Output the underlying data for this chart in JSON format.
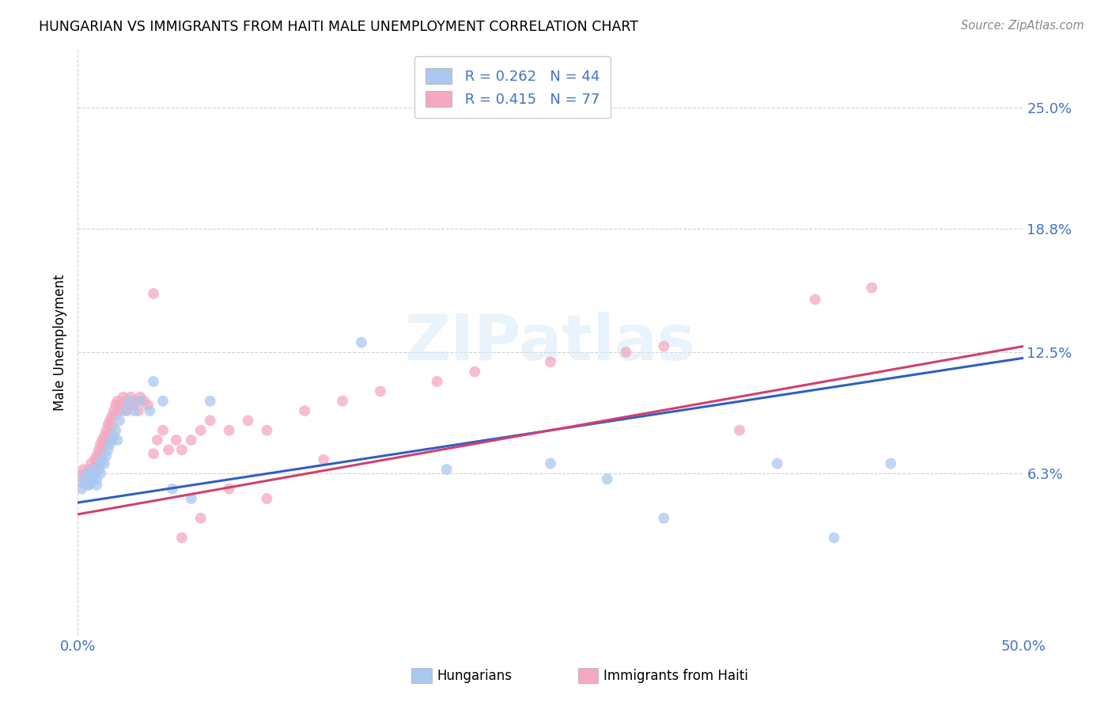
{
  "title": "HUNGARIAN VS IMMIGRANTS FROM HAITI MALE UNEMPLOYMENT CORRELATION CHART",
  "source": "Source: ZipAtlas.com",
  "ylabel": "Male Unemployment",
  "xlim": [
    0.0,
    0.5
  ],
  "ylim": [
    -0.02,
    0.28
  ],
  "ytick_labels": [
    "6.3%",
    "12.5%",
    "18.8%",
    "25.0%"
  ],
  "ytick_values": [
    0.063,
    0.125,
    0.188,
    0.25
  ],
  "xtick_labels": [
    "0.0%",
    "50.0%"
  ],
  "xtick_values": [
    0.0,
    0.5
  ],
  "legend_R1": "R = 0.262",
  "legend_N1": "N = 44",
  "legend_R2": "R = 0.415",
  "legend_N2": "N = 77",
  "color_hungarian": "#aac8f0",
  "color_haiti": "#f5a8c0",
  "color_line_hungarian": "#3060c0",
  "color_line_haiti": "#d04070",
  "color_text_blue": "#4472c4",
  "watermark": "ZIPatlas",
  "hung_line_x0": 0.0,
  "hung_line_y0": 0.048,
  "hung_line_x1": 0.5,
  "hung_line_y1": 0.122,
  "haiti_line_x0": 0.0,
  "haiti_line_y0": 0.042,
  "haiti_line_x1": 0.5,
  "haiti_line_y1": 0.128,
  "hungarian_x": [
    0.002,
    0.003,
    0.004,
    0.005,
    0.005,
    0.006,
    0.007,
    0.007,
    0.008,
    0.008,
    0.009,
    0.01,
    0.01,
    0.011,
    0.012,
    0.012,
    0.013,
    0.014,
    0.015,
    0.016,
    0.017,
    0.018,
    0.019,
    0.02,
    0.021,
    0.022,
    0.025,
    0.027,
    0.03,
    0.033,
    0.038,
    0.04,
    0.045,
    0.05,
    0.06,
    0.07,
    0.15,
    0.195,
    0.25,
    0.28,
    0.31,
    0.37,
    0.4,
    0.43
  ],
  "hungarian_y": [
    0.055,
    0.06,
    0.058,
    0.063,
    0.06,
    0.057,
    0.062,
    0.058,
    0.065,
    0.06,
    0.063,
    0.06,
    0.057,
    0.065,
    0.068,
    0.063,
    0.07,
    0.068,
    0.072,
    0.075,
    0.078,
    0.08,
    0.082,
    0.085,
    0.08,
    0.09,
    0.095,
    0.1,
    0.095,
    0.1,
    0.095,
    0.11,
    0.1,
    0.055,
    0.05,
    0.1,
    0.13,
    0.065,
    0.068,
    0.06,
    0.04,
    0.068,
    0.03,
    0.068
  ],
  "haiti_x": [
    0.002,
    0.003,
    0.003,
    0.004,
    0.005,
    0.005,
    0.006,
    0.006,
    0.007,
    0.007,
    0.008,
    0.008,
    0.009,
    0.009,
    0.01,
    0.01,
    0.011,
    0.011,
    0.012,
    0.012,
    0.013,
    0.013,
    0.014,
    0.014,
    0.015,
    0.015,
    0.016,
    0.016,
    0.017,
    0.018,
    0.018,
    0.019,
    0.02,
    0.02,
    0.021,
    0.022,
    0.023,
    0.024,
    0.025,
    0.026,
    0.027,
    0.028,
    0.029,
    0.03,
    0.032,
    0.033,
    0.035,
    0.037,
    0.04,
    0.042,
    0.045,
    0.048,
    0.052,
    0.055,
    0.06,
    0.065,
    0.07,
    0.08,
    0.09,
    0.1,
    0.12,
    0.14,
    0.16,
    0.19,
    0.21,
    0.25,
    0.29,
    0.31,
    0.35,
    0.39,
    0.42,
    0.04,
    0.055,
    0.065,
    0.08,
    0.1,
    0.13
  ],
  "haiti_y": [
    0.062,
    0.058,
    0.065,
    0.06,
    0.063,
    0.057,
    0.065,
    0.06,
    0.068,
    0.063,
    0.065,
    0.06,
    0.07,
    0.065,
    0.072,
    0.068,
    0.075,
    0.07,
    0.078,
    0.073,
    0.08,
    0.075,
    0.082,
    0.078,
    0.085,
    0.08,
    0.088,
    0.083,
    0.09,
    0.092,
    0.087,
    0.095,
    0.098,
    0.093,
    0.1,
    0.095,
    0.098,
    0.102,
    0.1,
    0.095,
    0.098,
    0.102,
    0.098,
    0.1,
    0.095,
    0.102,
    0.1,
    0.098,
    0.073,
    0.08,
    0.085,
    0.075,
    0.08,
    0.075,
    0.08,
    0.085,
    0.09,
    0.085,
    0.09,
    0.085,
    0.095,
    0.1,
    0.105,
    0.11,
    0.115,
    0.12,
    0.125,
    0.128,
    0.085,
    0.152,
    0.158,
    0.155,
    0.03,
    0.04,
    0.055,
    0.05,
    0.07
  ]
}
